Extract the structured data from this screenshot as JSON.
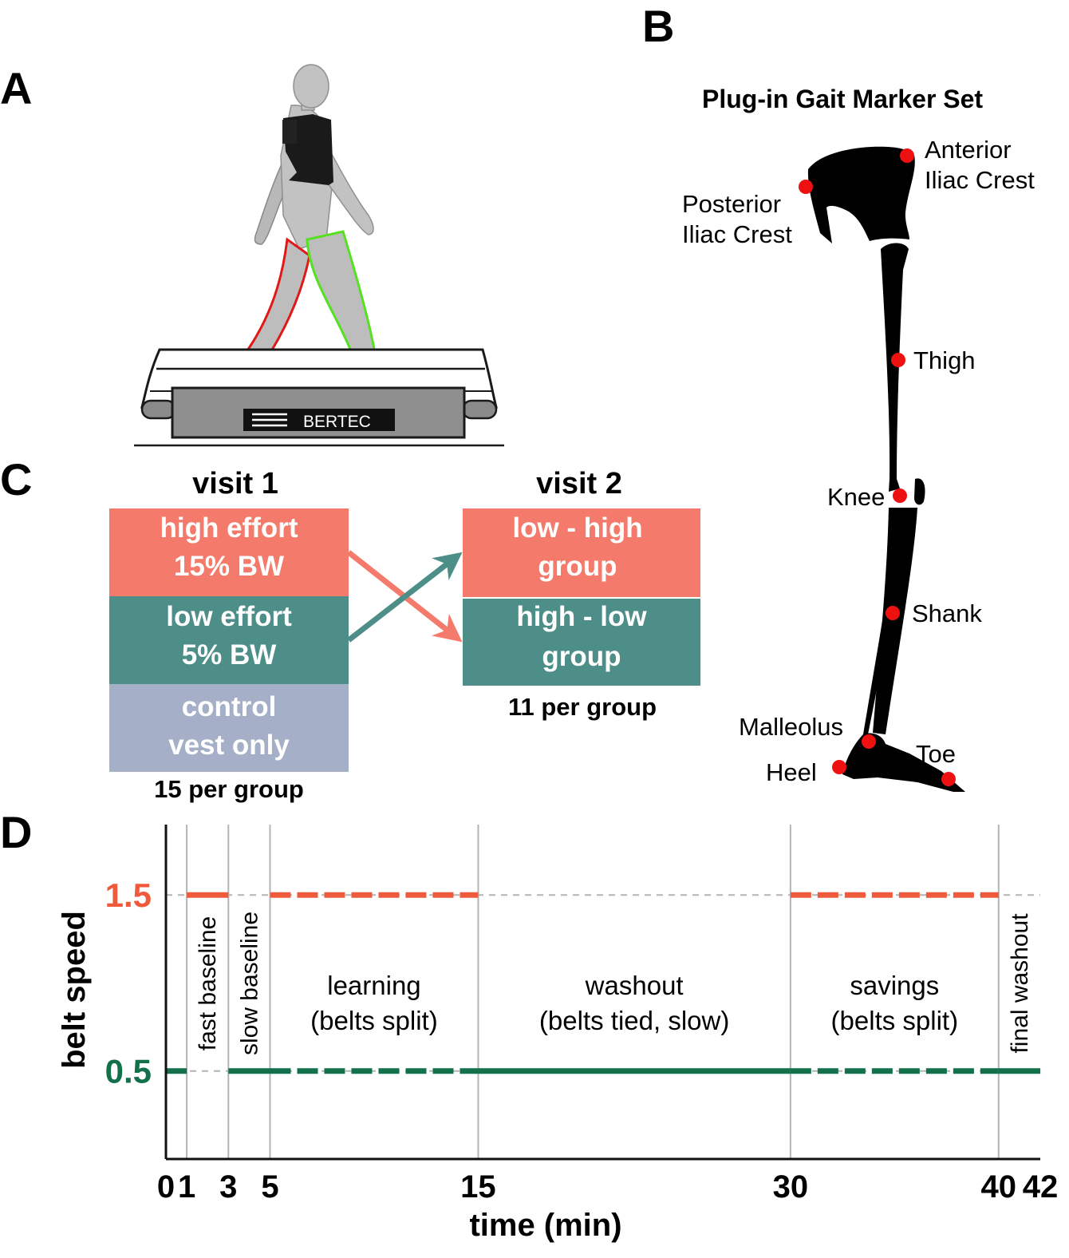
{
  "panels": {
    "a": "A",
    "b": "B",
    "c": "C",
    "d": "D"
  },
  "panel_a": {
    "treadmill_brand": "BERTEC"
  },
  "panel_b": {
    "title": "Plug-in Gait Marker Set",
    "markers": {
      "anterior_1": "Anterior",
      "anterior_2": "Iliac Crest",
      "posterior_1": "Posterior",
      "posterior_2": "Iliac Crest",
      "thigh": "Thigh",
      "knee": "Knee",
      "shank": "Shank",
      "malleolus": "Malleolus",
      "heel": "Heel",
      "toe": "Toe"
    },
    "marker_color": "#ee1111"
  },
  "panel_c": {
    "visit1": {
      "title": "visit 1",
      "high_1": "high effort",
      "high_2": "15% BW",
      "low_1": "low effort",
      "low_2": "5% BW",
      "control_1": "control",
      "control_2": "vest only",
      "footer": "15 per group"
    },
    "visit2": {
      "title": "visit 2",
      "lh_1": "low - high",
      "lh_2": "group",
      "hl_1": "high - low",
      "hl_2": "group",
      "footer": "11 per group"
    },
    "colors": {
      "high": "#f47a6b",
      "low": "#4d8e88",
      "control": "#a5b0c8"
    }
  },
  "chart_data": {
    "type": "line",
    "xlabel": "time (min)",
    "ylabel": "belt speed",
    "x_ticks": [
      "0",
      "1",
      "3",
      "5",
      "15",
      "30",
      "40",
      "42"
    ],
    "y_ticks": [
      "1.5",
      "0.5"
    ],
    "xlim": [
      0,
      42
    ],
    "ylim": [
      0,
      1.9
    ],
    "phase_boundaries": [
      1,
      3,
      5,
      15,
      30,
      40
    ],
    "phases": [
      {
        "start": 1,
        "end": 3,
        "label": "fast baseline"
      },
      {
        "start": 3,
        "end": 5,
        "label": "slow baseline"
      },
      {
        "start": 5,
        "end": 15,
        "label_1": "learning",
        "label_2": "(belts split)"
      },
      {
        "start": 15,
        "end": 30,
        "label_1": "washout",
        "label_2": "(belts tied, slow)"
      },
      {
        "start": 30,
        "end": 40,
        "label_1": "savings",
        "label_2": "(belts split)"
      },
      {
        "start": 40,
        "end": 42,
        "label": "final washout"
      }
    ],
    "fast_color": "#f05a3c",
    "slow_color": "#12704a",
    "series": [
      {
        "speed": 1.5,
        "segments": [
          {
            "from": 1,
            "to": 3,
            "style": "solid"
          },
          {
            "from": 5,
            "to": 15,
            "style": "dashed"
          },
          {
            "from": 30,
            "to": 40,
            "style": "dashed"
          }
        ]
      },
      {
        "speed": 0.5,
        "segments": [
          {
            "from": 0,
            "to": 1,
            "style": "solid"
          },
          {
            "from": 3,
            "to": 5,
            "style": "solid"
          },
          {
            "from": 5,
            "to": 15,
            "style": "dashed"
          },
          {
            "from": 15,
            "to": 30,
            "style": "solid"
          },
          {
            "from": 30,
            "to": 40,
            "style": "dashed"
          },
          {
            "from": 40,
            "to": 42,
            "style": "solid"
          }
        ]
      }
    ]
  }
}
